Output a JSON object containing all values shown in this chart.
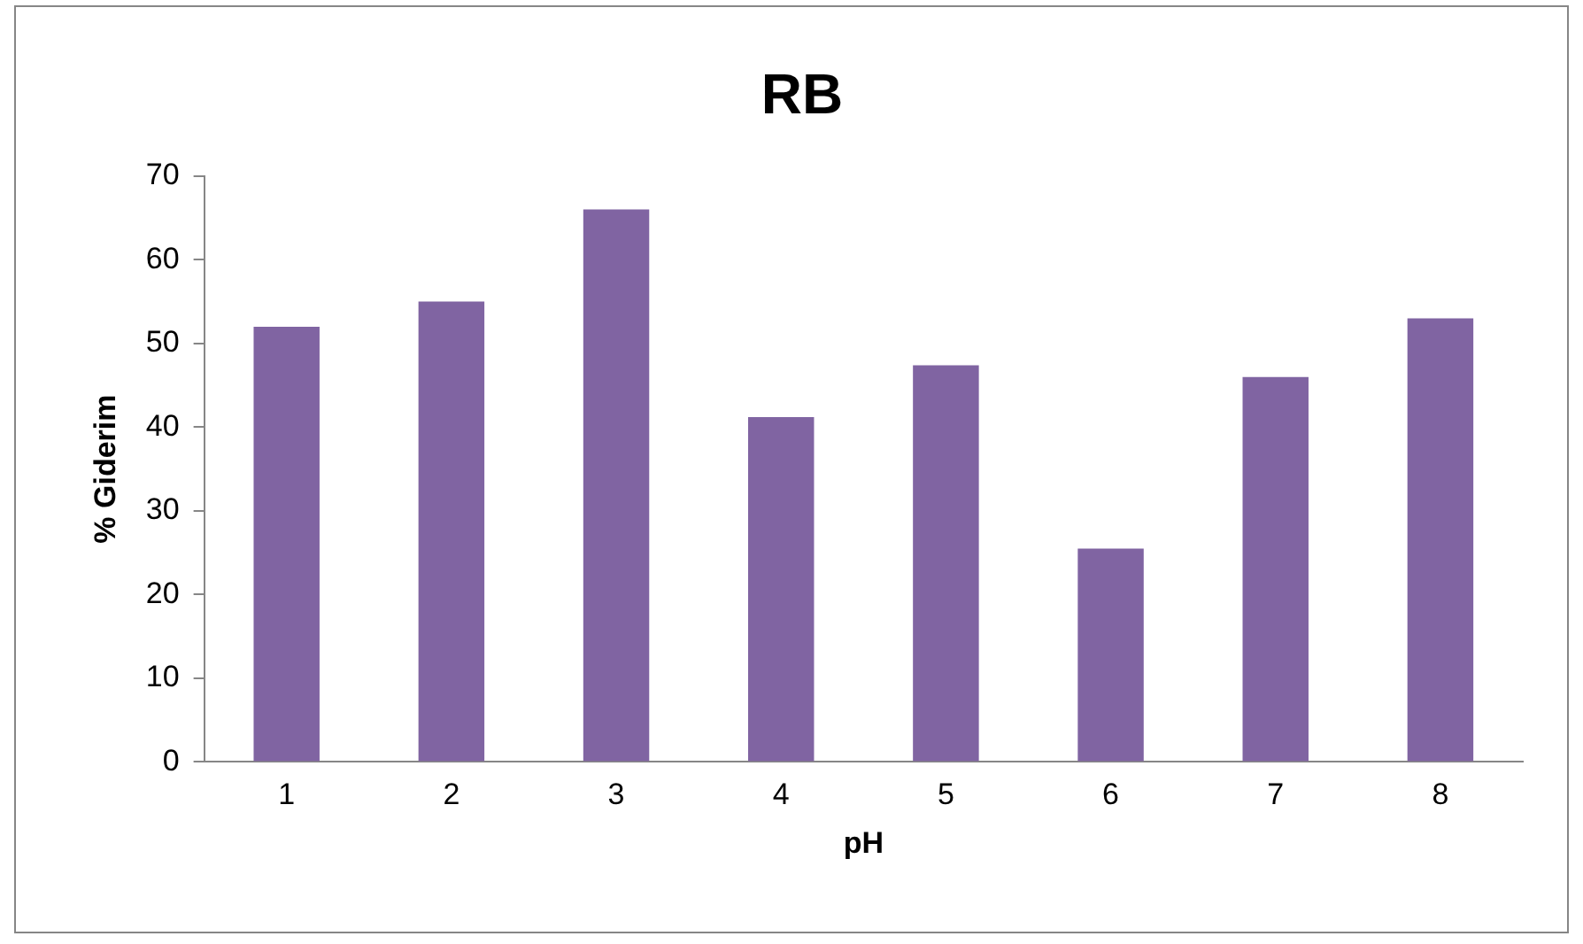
{
  "chart_data": {
    "type": "bar",
    "title": "RB",
    "xlabel": "pH",
    "ylabel": "% Giderim",
    "categories": [
      "1",
      "2",
      "3",
      "4",
      "5",
      "6",
      "7",
      "8"
    ],
    "values": [
      52,
      55,
      66,
      41.2,
      47.4,
      25.5,
      46,
      53
    ],
    "color": "#8064a2",
    "ylim": [
      0,
      70
    ],
    "yticks": [
      0,
      10,
      20,
      30,
      40,
      50,
      60,
      70
    ],
    "grid": false,
    "legend": false
  }
}
